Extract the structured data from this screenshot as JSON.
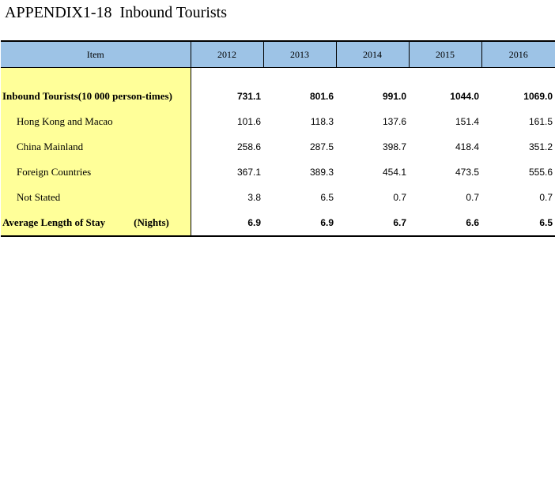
{
  "title": "APPENDIX1-18  Inbound Tourists",
  "header": {
    "item": "Item",
    "years": [
      "2012",
      "2013",
      "2014",
      "2015",
      "2016"
    ]
  },
  "rows": [
    {
      "label": "Inbound Tourists(10 000 person-times)",
      "values": [
        "731.1",
        "801.6",
        "991.0",
        "1044.0",
        "1069.0"
      ]
    },
    {
      "label": "Hong Kong and Macao",
      "values": [
        "101.6",
        "118.3",
        "137.6",
        "151.4",
        "161.5"
      ]
    },
    {
      "label": "China Mainland",
      "values": [
        "258.6",
        "287.5",
        "398.7",
        "418.4",
        "351.2"
      ]
    },
    {
      "label": "Foreign Countries",
      "values": [
        "367.1",
        "389.3",
        "454.1",
        "473.5",
        "555.6"
      ]
    },
    {
      "label": "Not Stated",
      "values": [
        "3.8",
        "6.5",
        "0.7",
        "0.7",
        "0.7"
      ]
    },
    {
      "label": "Average Length of Stay",
      "unit": "(Nights)",
      "values": [
        "6.9",
        "6.9",
        "6.7",
        "6.6",
        "6.5"
      ]
    }
  ],
  "colors": {
    "header_bg": "#9dc3e6",
    "item_column_bg": "#ffff99"
  }
}
